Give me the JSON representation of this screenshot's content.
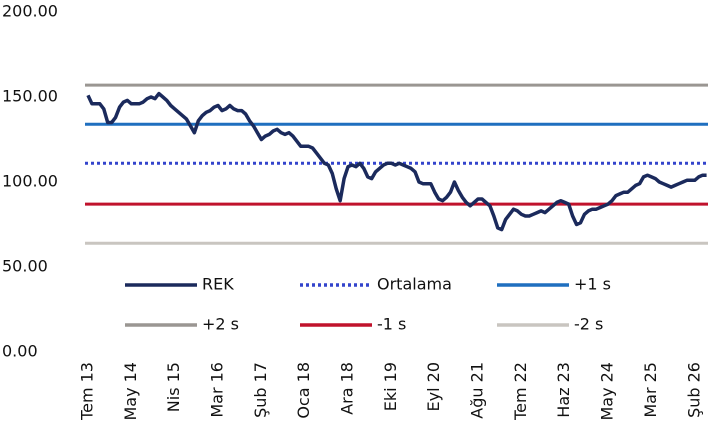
{
  "chart_data": {
    "type": "line",
    "categories": [
      "Tem 13",
      null,
      null,
      null,
      null,
      null,
      null,
      null,
      null,
      null,
      null,
      "May 14",
      null,
      null,
      null,
      null,
      null,
      null,
      null,
      null,
      null,
      null,
      "Nis 15",
      null,
      null,
      null,
      null,
      null,
      null,
      null,
      null,
      null,
      null,
      "Mar 16",
      null,
      null,
      null,
      null,
      null,
      null,
      null,
      null,
      null,
      null,
      "Şub 17",
      null,
      null,
      null,
      null,
      null,
      null,
      null,
      null,
      null,
      null,
      "Oca 18",
      null,
      null,
      null,
      null,
      null,
      null,
      null,
      null,
      null,
      null,
      "Ara 18",
      null,
      null,
      null,
      null,
      null,
      null,
      null,
      null,
      null,
      null,
      "Eki 19",
      null,
      null,
      null,
      null,
      null,
      null,
      null,
      null,
      null,
      null,
      "Eyl 20",
      null,
      null,
      null,
      null,
      null,
      null,
      null,
      null,
      null,
      null,
      "Ağu 21",
      null,
      null,
      null,
      null,
      null,
      null,
      null,
      null,
      null,
      null,
      "Tem 22",
      null,
      null,
      null,
      null,
      null,
      null,
      null,
      null,
      null,
      null,
      "Haz 23",
      null,
      null,
      null,
      null,
      null,
      null,
      null,
      null,
      null,
      null,
      "May 24",
      null,
      null,
      null,
      null,
      null,
      null,
      null,
      null,
      null,
      null,
      "Mar 25",
      null,
      null,
      null,
      null,
      null,
      null,
      null,
      null,
      null,
      null,
      "Şub 26",
      null,
      null,
      null
    ],
    "series": [
      {
        "name": "REK",
        "color": "#1b2a5c",
        "style": "solid",
        "values": [
          151,
          146,
          146,
          146,
          143,
          135,
          135,
          138,
          144,
          147,
          148,
          146,
          146,
          146,
          147,
          149,
          150,
          149,
          152,
          150,
          148,
          145,
          143,
          141,
          139,
          137,
          133,
          129,
          136,
          139,
          141,
          142,
          144,
          145,
          142,
          143,
          145,
          143,
          142,
          142,
          140,
          136,
          133,
          129,
          125,
          127,
          128,
          130,
          131,
          129,
          128,
          129,
          127,
          124,
          121,
          121,
          121,
          120,
          117,
          114,
          111,
          110,
          105,
          96,
          89,
          102,
          109,
          110,
          109,
          111,
          108,
          103,
          102,
          106,
          108,
          110,
          111,
          111,
          110,
          111,
          110,
          109,
          108,
          106,
          100,
          99,
          99,
          99,
          94,
          90,
          89,
          91,
          94,
          100,
          95,
          91,
          88,
          86,
          88,
          90,
          90,
          88,
          86,
          80,
          73,
          72,
          78,
          81,
          84,
          83,
          81,
          80,
          80,
          81,
          82,
          83,
          82,
          84,
          86,
          88,
          89,
          88,
          87,
          80,
          75,
          76,
          81,
          83,
          84,
          84,
          85,
          86,
          87,
          89,
          92,
          93,
          94,
          94,
          96,
          98,
          99,
          103,
          104,
          103,
          102,
          100,
          99,
          98,
          97,
          98,
          99,
          100,
          101,
          101,
          101,
          103,
          104,
          104
        ]
      },
      {
        "name": "Ortalama",
        "color": "#3344cc",
        "style": "dotted",
        "value": 111
      },
      {
        "name": "+1 s",
        "color": "#1f6fbf",
        "style": "solid",
        "value": 134
      },
      {
        "name": "+2 s",
        "color": "#9a9692",
        "style": "solid",
        "value": 157
      },
      {
        "name": "-1 s",
        "color": "#c0122c",
        "style": "solid",
        "value": 87
      },
      {
        "name": "-2 s",
        "color": "#c9c5c0",
        "style": "solid",
        "value": 64
      }
    ],
    "ylim": [
      0,
      200
    ],
    "yticks": [
      {
        "value": 0,
        "label": "0.00"
      },
      {
        "value": 50,
        "label": "50.00"
      },
      {
        "value": 100,
        "label": "100.00"
      },
      {
        "value": 150,
        "label": "150.00"
      },
      {
        "value": 200,
        "label": "200.00"
      }
    ],
    "grid": false
  }
}
